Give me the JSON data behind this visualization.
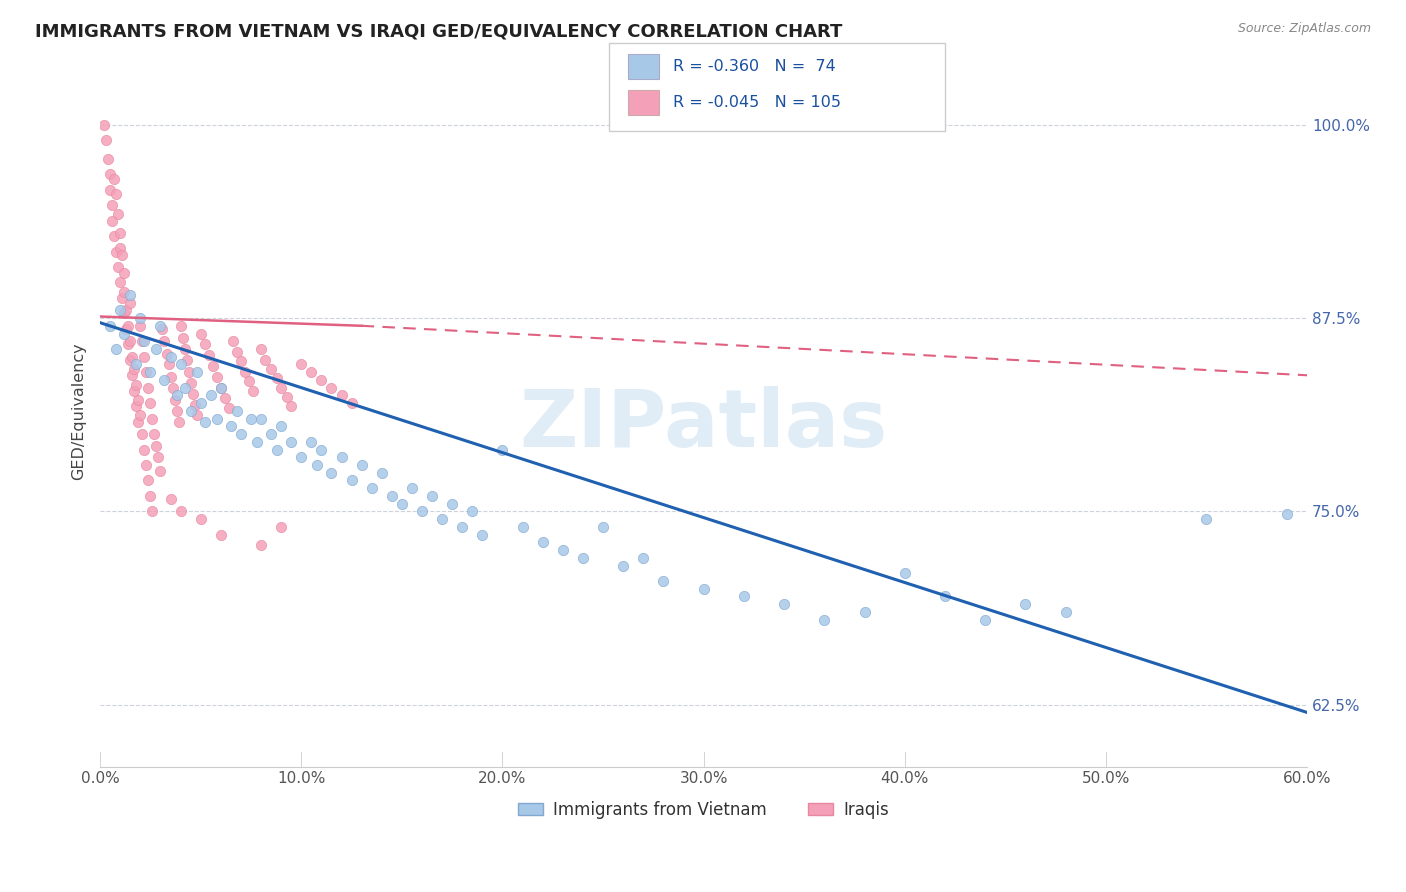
{
  "title": "IMMIGRANTS FROM VIETNAM VS IRAQI GED/EQUIVALENCY CORRELATION CHART",
  "source": "Source: ZipAtlas.com",
  "ylabel": "GED/Equivalency",
  "y_ticks": [
    0.625,
    0.75,
    0.875,
    1.0
  ],
  "y_tick_labels": [
    "62.5%",
    "75.0%",
    "87.5%",
    "100.0%"
  ],
  "x_min": 0.0,
  "x_max": 0.6,
  "y_min": 0.585,
  "y_max": 1.045,
  "legend_blue_label": "Immigrants from Vietnam",
  "legend_pink_label": "Iraqis",
  "blue_R": -0.36,
  "blue_N": 74,
  "pink_R": -0.045,
  "pink_N": 105,
  "blue_color": "#a8c8e8",
  "pink_color": "#f4a0b8",
  "blue_line_color": "#2060b0",
  "pink_line_color": "#e06080",
  "blue_scatter": [
    [
      0.005,
      0.87
    ],
    [
      0.008,
      0.855
    ],
    [
      0.01,
      0.88
    ],
    [
      0.012,
      0.865
    ],
    [
      0.015,
      0.89
    ],
    [
      0.018,
      0.845
    ],
    [
      0.02,
      0.875
    ],
    [
      0.022,
      0.86
    ],
    [
      0.025,
      0.84
    ],
    [
      0.028,
      0.855
    ],
    [
      0.03,
      0.87
    ],
    [
      0.032,
      0.835
    ],
    [
      0.035,
      0.85
    ],
    [
      0.038,
      0.825
    ],
    [
      0.04,
      0.845
    ],
    [
      0.042,
      0.83
    ],
    [
      0.045,
      0.815
    ],
    [
      0.048,
      0.84
    ],
    [
      0.05,
      0.82
    ],
    [
      0.052,
      0.808
    ],
    [
      0.055,
      0.825
    ],
    [
      0.058,
      0.81
    ],
    [
      0.06,
      0.83
    ],
    [
      0.065,
      0.805
    ],
    [
      0.068,
      0.815
    ],
    [
      0.07,
      0.8
    ],
    [
      0.075,
      0.81
    ],
    [
      0.078,
      0.795
    ],
    [
      0.08,
      0.81
    ],
    [
      0.085,
      0.8
    ],
    [
      0.088,
      0.79
    ],
    [
      0.09,
      0.805
    ],
    [
      0.095,
      0.795
    ],
    [
      0.1,
      0.785
    ],
    [
      0.105,
      0.795
    ],
    [
      0.108,
      0.78
    ],
    [
      0.11,
      0.79
    ],
    [
      0.115,
      0.775
    ],
    [
      0.12,
      0.785
    ],
    [
      0.125,
      0.77
    ],
    [
      0.13,
      0.78
    ],
    [
      0.135,
      0.765
    ],
    [
      0.14,
      0.775
    ],
    [
      0.145,
      0.76
    ],
    [
      0.15,
      0.755
    ],
    [
      0.155,
      0.765
    ],
    [
      0.16,
      0.75
    ],
    [
      0.165,
      0.76
    ],
    [
      0.17,
      0.745
    ],
    [
      0.175,
      0.755
    ],
    [
      0.18,
      0.74
    ],
    [
      0.185,
      0.75
    ],
    [
      0.19,
      0.735
    ],
    [
      0.2,
      0.79
    ],
    [
      0.21,
      0.74
    ],
    [
      0.22,
      0.73
    ],
    [
      0.23,
      0.725
    ],
    [
      0.24,
      0.72
    ],
    [
      0.25,
      0.74
    ],
    [
      0.26,
      0.715
    ],
    [
      0.27,
      0.72
    ],
    [
      0.28,
      0.705
    ],
    [
      0.3,
      0.7
    ],
    [
      0.32,
      0.695
    ],
    [
      0.34,
      0.69
    ],
    [
      0.36,
      0.68
    ],
    [
      0.38,
      0.685
    ],
    [
      0.4,
      0.71
    ],
    [
      0.42,
      0.695
    ],
    [
      0.44,
      0.68
    ],
    [
      0.46,
      0.69
    ],
    [
      0.48,
      0.685
    ],
    [
      0.55,
      0.745
    ],
    [
      0.59,
      0.748
    ]
  ],
  "pink_scatter": [
    [
      0.002,
      1.0
    ],
    [
      0.003,
      0.99
    ],
    [
      0.004,
      0.978
    ],
    [
      0.005,
      0.968
    ],
    [
      0.005,
      0.958
    ],
    [
      0.006,
      0.948
    ],
    [
      0.006,
      0.938
    ],
    [
      0.007,
      0.965
    ],
    [
      0.007,
      0.928
    ],
    [
      0.008,
      0.955
    ],
    [
      0.008,
      0.918
    ],
    [
      0.009,
      0.942
    ],
    [
      0.009,
      0.908
    ],
    [
      0.01,
      0.93
    ],
    [
      0.01,
      0.92
    ],
    [
      0.01,
      0.898
    ],
    [
      0.011,
      0.916
    ],
    [
      0.011,
      0.888
    ],
    [
      0.012,
      0.904
    ],
    [
      0.012,
      0.878
    ],
    [
      0.012,
      0.892
    ],
    [
      0.013,
      0.868
    ],
    [
      0.013,
      0.88
    ],
    [
      0.014,
      0.858
    ],
    [
      0.014,
      0.87
    ],
    [
      0.015,
      0.885
    ],
    [
      0.015,
      0.848
    ],
    [
      0.015,
      0.86
    ],
    [
      0.016,
      0.838
    ],
    [
      0.016,
      0.85
    ],
    [
      0.017,
      0.828
    ],
    [
      0.017,
      0.842
    ],
    [
      0.018,
      0.818
    ],
    [
      0.018,
      0.832
    ],
    [
      0.019,
      0.808
    ],
    [
      0.019,
      0.822
    ],
    [
      0.02,
      0.87
    ],
    [
      0.02,
      0.812
    ],
    [
      0.021,
      0.8
    ],
    [
      0.021,
      0.86
    ],
    [
      0.022,
      0.85
    ],
    [
      0.022,
      0.79
    ],
    [
      0.023,
      0.84
    ],
    [
      0.023,
      0.78
    ],
    [
      0.024,
      0.83
    ],
    [
      0.024,
      0.77
    ],
    [
      0.025,
      0.82
    ],
    [
      0.025,
      0.76
    ],
    [
      0.026,
      0.81
    ],
    [
      0.026,
      0.75
    ],
    [
      0.027,
      0.8
    ],
    [
      0.028,
      0.792
    ],
    [
      0.029,
      0.785
    ],
    [
      0.03,
      0.776
    ],
    [
      0.031,
      0.868
    ],
    [
      0.032,
      0.86
    ],
    [
      0.033,
      0.852
    ],
    [
      0.034,
      0.845
    ],
    [
      0.035,
      0.837
    ],
    [
      0.036,
      0.83
    ],
    [
      0.037,
      0.822
    ],
    [
      0.038,
      0.815
    ],
    [
      0.039,
      0.808
    ],
    [
      0.04,
      0.87
    ],
    [
      0.041,
      0.862
    ],
    [
      0.042,
      0.855
    ],
    [
      0.043,
      0.848
    ],
    [
      0.044,
      0.84
    ],
    [
      0.045,
      0.833
    ],
    [
      0.046,
      0.826
    ],
    [
      0.047,
      0.819
    ],
    [
      0.048,
      0.812
    ],
    [
      0.05,
      0.865
    ],
    [
      0.052,
      0.858
    ],
    [
      0.054,
      0.851
    ],
    [
      0.056,
      0.844
    ],
    [
      0.058,
      0.837
    ],
    [
      0.06,
      0.83
    ],
    [
      0.062,
      0.823
    ],
    [
      0.064,
      0.817
    ],
    [
      0.066,
      0.86
    ],
    [
      0.068,
      0.853
    ],
    [
      0.07,
      0.847
    ],
    [
      0.072,
      0.84
    ],
    [
      0.074,
      0.834
    ],
    [
      0.076,
      0.828
    ],
    [
      0.08,
      0.855
    ],
    [
      0.082,
      0.848
    ],
    [
      0.085,
      0.842
    ],
    [
      0.088,
      0.836
    ],
    [
      0.09,
      0.83
    ],
    [
      0.093,
      0.824
    ],
    [
      0.095,
      0.818
    ],
    [
      0.1,
      0.845
    ],
    [
      0.105,
      0.84
    ],
    [
      0.11,
      0.835
    ],
    [
      0.115,
      0.83
    ],
    [
      0.12,
      0.825
    ],
    [
      0.125,
      0.82
    ],
    [
      0.05,
      0.745
    ],
    [
      0.06,
      0.735
    ],
    [
      0.035,
      0.758
    ],
    [
      0.08,
      0.728
    ],
    [
      0.09,
      0.74
    ],
    [
      0.04,
      0.75
    ]
  ]
}
